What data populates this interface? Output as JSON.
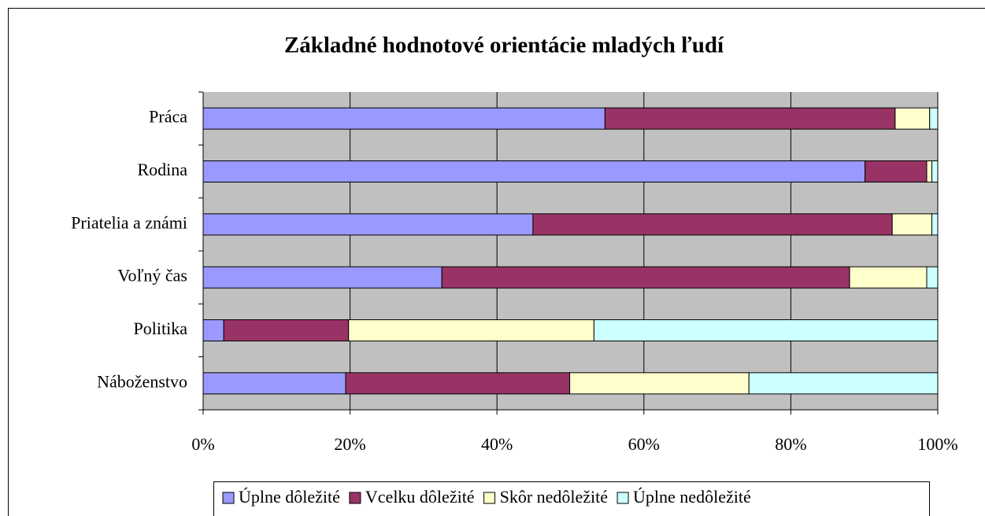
{
  "chart_data": {
    "type": "stacked_bar_horizontal",
    "title": "Základné hodnotové orientácie mladých ľudí",
    "categories": [
      "Práca",
      "Rodina",
      "Priatelia a známi",
      "Voľný čas",
      "Politika",
      "Náboženstvo"
    ],
    "series": [
      {
        "name": "Úplne dôležité",
        "color": "#9999ff",
        "values": [
          54.7,
          90.1,
          44.9,
          32.5,
          2.8,
          19.4
        ]
      },
      {
        "name": "Vcelku dôležité",
        "color": "#993366",
        "values": [
          39.5,
          8.4,
          48.9,
          55.5,
          17.0,
          30.5
        ]
      },
      {
        "name": "Skôr nedôležité",
        "color": "#ffffcc",
        "values": [
          4.7,
          0.7,
          5.4,
          10.5,
          33.4,
          24.4
        ]
      },
      {
        "name": "Úplne nedôležité",
        "color": "#ccffff",
        "values": [
          1.1,
          0.8,
          0.8,
          1.5,
          46.8,
          25.7
        ]
      }
    ],
    "xlim": [
      0,
      100
    ],
    "xticks": [
      {
        "value": 0,
        "label": "0%"
      },
      {
        "value": 20,
        "label": "20%"
      },
      {
        "value": 40,
        "label": "40%"
      },
      {
        "value": 60,
        "label": "60%"
      },
      {
        "value": 80,
        "label": "80%"
      },
      {
        "value": 100,
        "label": "100%"
      }
    ],
    "grid": true,
    "legend": "bottom"
  }
}
